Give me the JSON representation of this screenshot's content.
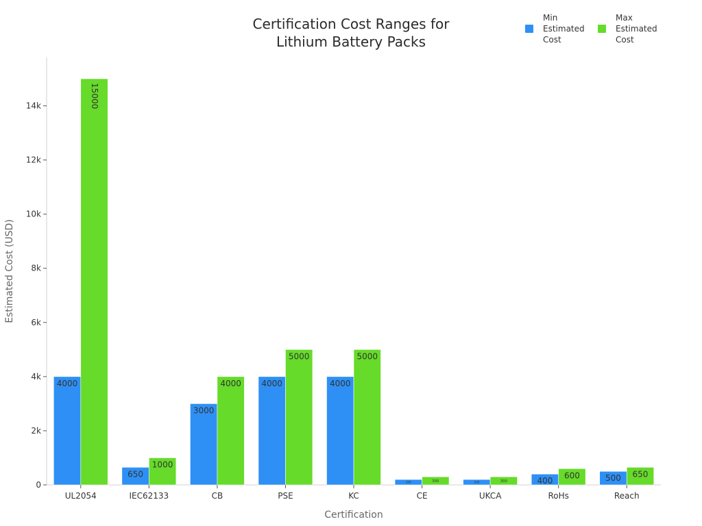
{
  "chart_data": {
    "type": "bar",
    "title_lines": [
      "Certification Cost Ranges for",
      "Lithium Battery Packs"
    ],
    "xlabel": "Certification",
    "ylabel": "Estimated Cost (USD)",
    "categories": [
      "UL2054",
      "IEC62133",
      "CB",
      "PSE",
      "KC",
      "CE",
      "UKCA",
      "RoHs",
      "Reach"
    ],
    "series": [
      {
        "name_lines": [
          "Min",
          "Estimated",
          "Cost"
        ],
        "color": "#2e90f5",
        "values": [
          4000,
          650,
          3000,
          4000,
          4000,
          200,
          200,
          400,
          500
        ]
      },
      {
        "name_lines": [
          "Max",
          "Estimated",
          "Cost"
        ],
        "color": "#66db2a",
        "values": [
          15000,
          1000,
          4000,
          5000,
          5000,
          300,
          300,
          600,
          650
        ]
      }
    ],
    "ylim": [
      0,
      15800
    ],
    "yticks": [
      0,
      2000,
      4000,
      6000,
      8000,
      10000,
      12000,
      14000
    ],
    "ytick_labels": [
      "0",
      "2k",
      "4k",
      "6k",
      "8k",
      "10k",
      "12k",
      "14k"
    ],
    "grid": false,
    "legend_position": "top-right"
  }
}
